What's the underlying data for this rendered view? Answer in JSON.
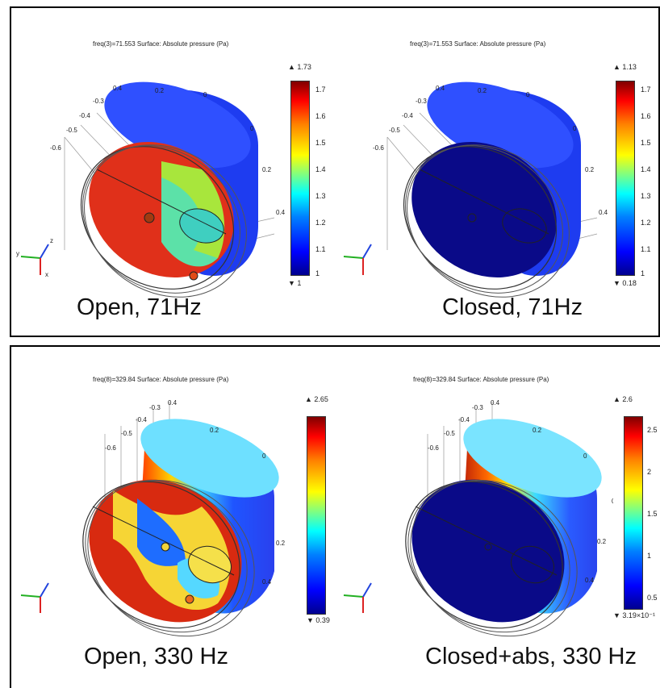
{
  "panels": [
    {
      "title": "freq(3)=71.553   Surface: Absolute pressure (Pa)",
      "caption": "Open, 71Hz",
      "max": "▲ 1.73",
      "min": "▼ 1",
      "ticks": [
        "1.7",
        "1.6",
        "1.5",
        "1.4",
        "1.3",
        "1.2",
        "1.1",
        "1"
      ],
      "axis_ticks": [
        "0.4",
        "0.2",
        "0",
        "-0.3",
        "-0.4",
        "-0.5",
        "-0.6",
        "0",
        "0.2",
        "0.4"
      ]
    },
    {
      "title": "freq(3)=71.553   Surface: Absolute pressure (Pa)",
      "caption": "Closed, 71Hz",
      "max": "▲ 1.13",
      "min": "▼ 0.18",
      "ticks": [
        "1.7",
        "1.6",
        "1.5",
        "1.4",
        "1.3",
        "1.2",
        "1.1",
        "1"
      ],
      "axis_ticks": [
        "0.4",
        "0.2",
        "0",
        "-0.3",
        "-0.4",
        "-0.5",
        "-0.6",
        "0",
        "0.2",
        "0.4"
      ]
    },
    {
      "title": "freq(8)=329.84   Surface: Absolute pressure (Pa)",
      "caption": "Open, 330 Hz",
      "max": "▲ 2.65",
      "min": "▼ 0.39",
      "ticks": [],
      "axis_ticks": [
        "-0.3",
        "0.4",
        "-0.4",
        "-0.5",
        "-0.6",
        "0.2",
        "0",
        "0",
        "0.2",
        "0.4"
      ]
    },
    {
      "title": "freq(8)=329.84   Surface: Absolute pressure (Pa)",
      "caption": "Closed+abs, 330 Hz",
      "max": "▲ 2.6",
      "min": "▼ 3.19×10⁻¹",
      "ticks": [
        "2.5",
        "2",
        "1.5",
        "1",
        "0.5"
      ],
      "axis_ticks": [
        "-0.3",
        "0.4",
        "-0.4",
        "-0.5",
        "-0.6",
        "0.2",
        "0",
        "0",
        "0.2",
        "0.4"
      ]
    }
  ],
  "triad": {
    "x": "x",
    "y": "y",
    "z": "z"
  },
  "colors": {
    "hot": "#d81e0a",
    "cold": "#08108a",
    "mid": "#2aa8ff",
    "body": "#1e3cf0"
  }
}
